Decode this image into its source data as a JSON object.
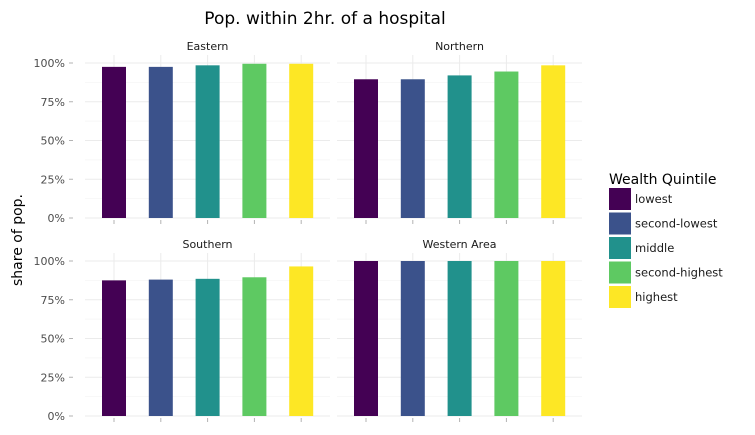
{
  "chart_data": {
    "type": "bar",
    "title": "Pop. within 2hr. of a hospital",
    "ylabel": "share of pop.",
    "xlabel": "",
    "ylim": [
      0,
      1
    ],
    "y_ticks": [
      0,
      0.25,
      0.5,
      0.75,
      1
    ],
    "y_tick_labels": [
      "0%",
      "25%",
      "50%",
      "75%",
      "100%"
    ],
    "grid": true,
    "legend": {
      "title": "Wealth Quintile",
      "placement": "right"
    },
    "categories": [
      "lowest",
      "second-lowest",
      "middle",
      "second-highest",
      "highest"
    ],
    "colors": [
      "#440154",
      "#3b528b",
      "#21918c",
      "#5ec962",
      "#fde725"
    ],
    "facets": [
      {
        "name": "Eastern",
        "values": [
          0.975,
          0.975,
          0.985,
          0.995,
          0.995
        ]
      },
      {
        "name": "Northern",
        "values": [
          0.895,
          0.895,
          0.92,
          0.945,
          0.985
        ]
      },
      {
        "name": "Southern",
        "values": [
          0.875,
          0.88,
          0.885,
          0.895,
          0.965
        ]
      },
      {
        "name": "Western Area",
        "values": [
          1.0,
          1.0,
          1.0,
          1.0,
          1.0
        ]
      }
    ]
  }
}
